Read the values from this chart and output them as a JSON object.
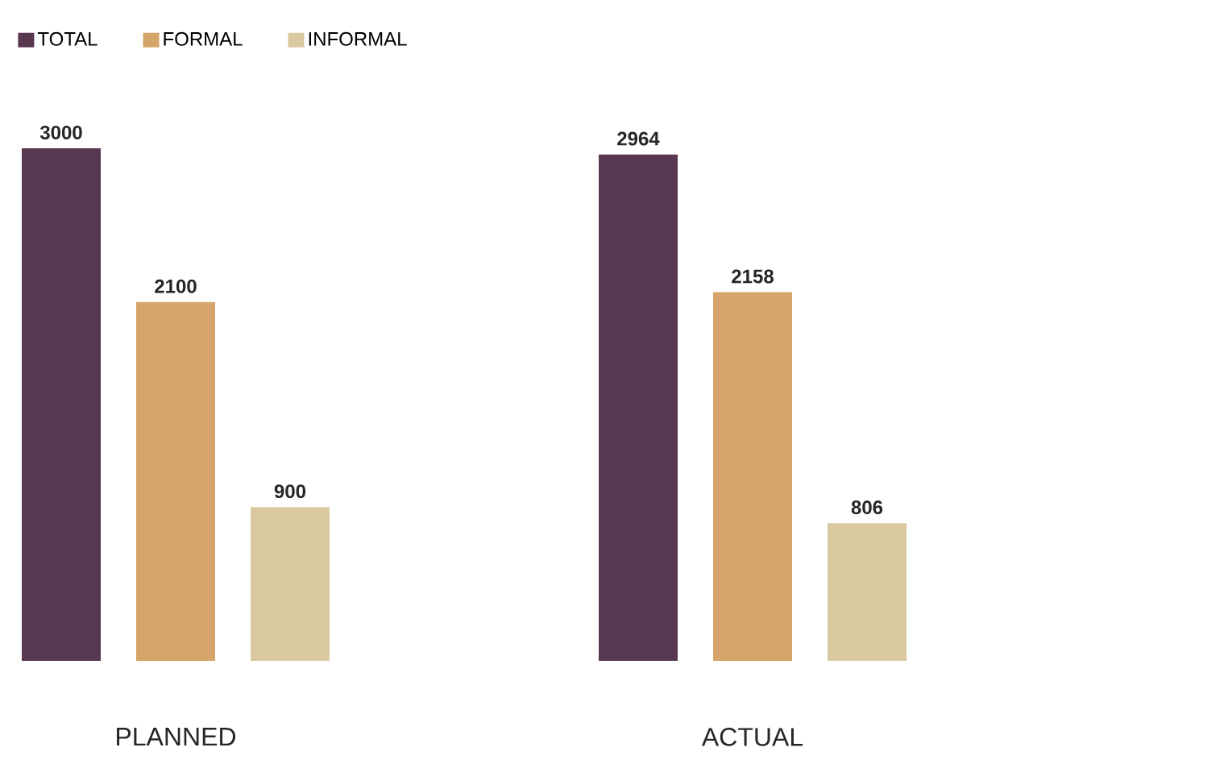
{
  "chart_data": {
    "type": "bar",
    "categories": [
      "PLANNED",
      "ACTUAL"
    ],
    "series": [
      {
        "name": "TOTAL",
        "color": "#583751",
        "values": [
          3000,
          2964
        ]
      },
      {
        "name": "FORMAL",
        "color": "#d4a46a",
        "values": [
          2100,
          2158
        ]
      },
      {
        "name": "INFORMAL",
        "color": "#d8c9a1",
        "values": [
          900,
          806
        ]
      }
    ],
    "data_labels": true,
    "legend": "top left"
  }
}
